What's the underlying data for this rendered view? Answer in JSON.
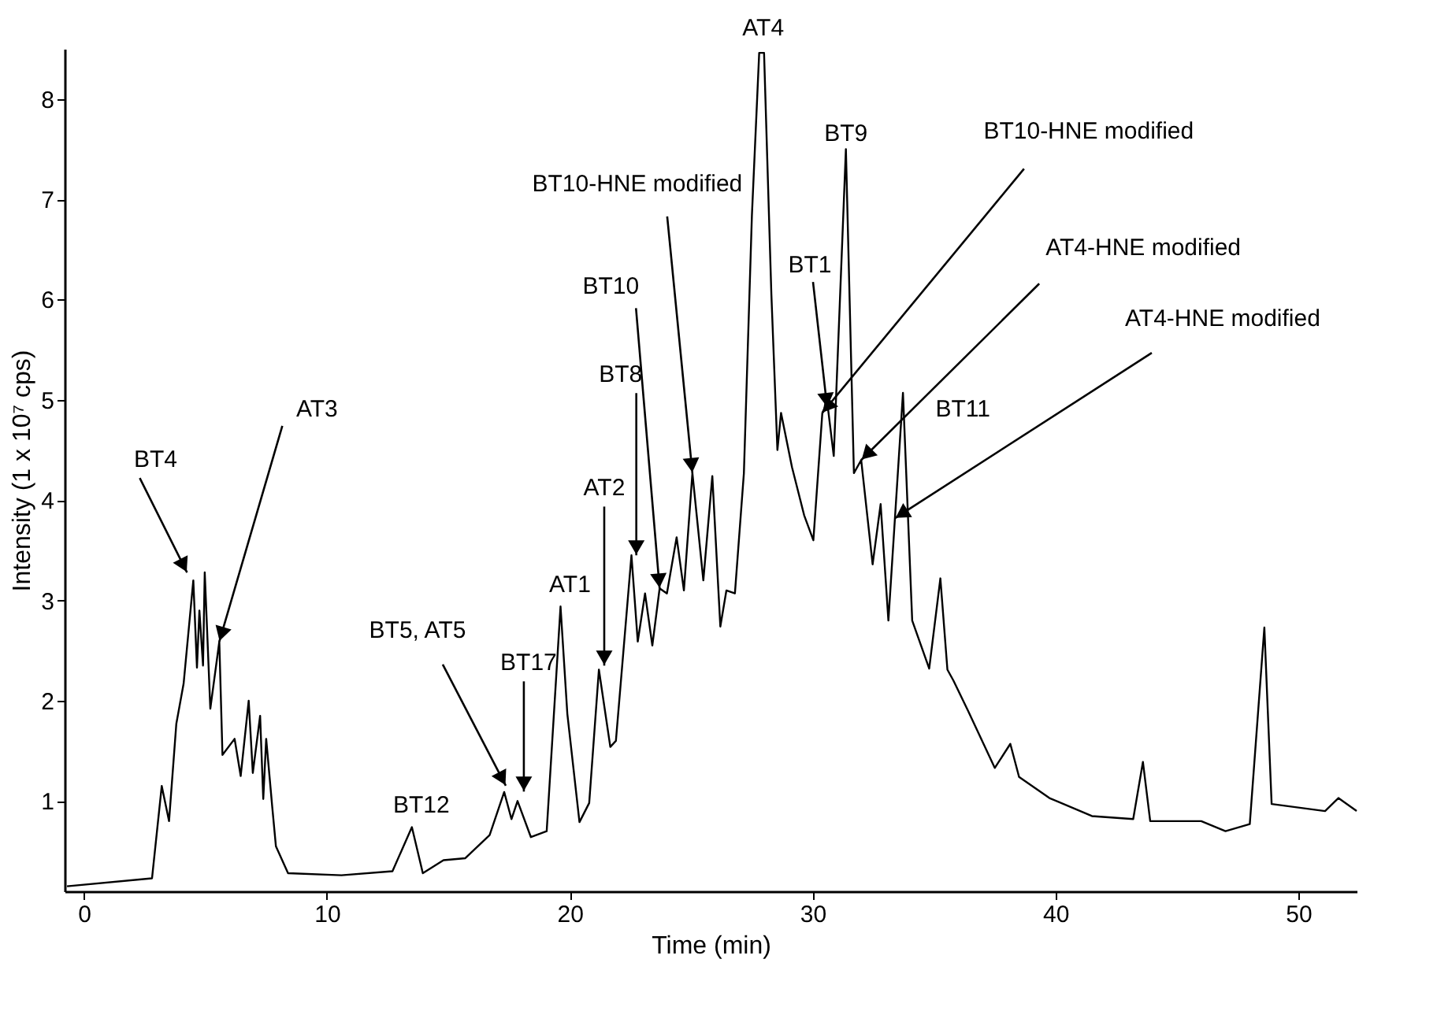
{
  "chart_data": {
    "type": "line",
    "xlabel": "Time (min)",
    "ylabel": "Intensity (1 x 10⁷ cps)",
    "xlim": [
      -0.8,
      52.4
    ],
    "ylim": [
      0.1,
      8.5
    ],
    "xticks": [
      0,
      10,
      20,
      30,
      40,
      50
    ],
    "yticks": [
      1,
      2,
      3,
      4,
      5,
      6,
      7,
      8
    ],
    "grid": false,
    "marker": "none",
    "line_style": "solid",
    "series": [
      {
        "color": "#000000",
        "x": [
          -0.7,
          2.8,
          3.2,
          3.5,
          3.8,
          4.1,
          4.5,
          4.65,
          4.75,
          4.9,
          4.97,
          5.2,
          5.57,
          5.7,
          6.2,
          6.45,
          6.78,
          6.95,
          7.25,
          7.38,
          7.5,
          7.75,
          7.9,
          8.4,
          10.6,
          12.7,
          13.5,
          13.95,
          14.8,
          15.7,
          16.7,
          17.3,
          17.6,
          17.85,
          18.4,
          19.05,
          19.62,
          19.9,
          20.4,
          20.8,
          21.2,
          21.67,
          21.9,
          22.54,
          22.8,
          23.1,
          23.4,
          23.7,
          24.0,
          24.4,
          24.7,
          25.05,
          25.5,
          25.87,
          26.2,
          26.45,
          26.8,
          27.17,
          27.5,
          27.8,
          28.0,
          28.3,
          28.55,
          28.7,
          29.15,
          29.65,
          30.03,
          30.4,
          30.6,
          30.87,
          31.37,
          31.7,
          32.0,
          32.47,
          32.8,
          33.12,
          33.72,
          34.1,
          34.8,
          35.26,
          35.55,
          35.8,
          36.4,
          37.5,
          38.14,
          38.5,
          39.75,
          41.5,
          43.2,
          43.6,
          43.9,
          46.0,
          47.0,
          48.0,
          48.6,
          48.9,
          51.1,
          51.65,
          52.4
        ],
        "values": [
          0.15,
          0.23,
          1.15,
          0.8,
          1.77,
          2.17,
          3.2,
          2.33,
          2.9,
          2.35,
          3.28,
          1.92,
          2.59,
          1.46,
          1.62,
          1.25,
          2.0,
          1.28,
          1.85,
          1.02,
          1.62,
          0.94,
          0.55,
          0.28,
          0.26,
          0.3,
          0.74,
          0.28,
          0.41,
          0.43,
          0.66,
          1.09,
          0.82,
          1.0,
          0.64,
          0.7,
          2.94,
          1.87,
          0.79,
          0.98,
          2.31,
          1.54,
          1.6,
          3.45,
          2.59,
          3.07,
          2.55,
          3.12,
          3.07,
          3.63,
          3.1,
          4.27,
          3.2,
          4.24,
          2.74,
          3.1,
          3.07,
          4.27,
          6.84,
          8.46,
          8.46,
          6.06,
          4.5,
          4.87,
          4.33,
          3.85,
          3.6,
          4.87,
          4.98,
          4.44,
          7.5,
          4.27,
          4.4,
          3.36,
          3.96,
          2.8,
          5.07,
          2.8,
          2.32,
          3.22,
          2.31,
          2.2,
          1.9,
          1.33,
          1.57,
          1.24,
          1.03,
          0.85,
          0.82,
          1.39,
          0.8,
          0.8,
          0.7,
          0.77,
          2.73,
          0.97,
          0.9,
          1.03,
          0.9
        ]
      }
    ],
    "annotations": [
      {
        "text": "BT4",
        "x": 4.5,
        "y": 3.2
      },
      {
        "text": "AT3",
        "x": 5.57,
        "y": 2.59
      },
      {
        "text": "BT12",
        "x": 13.5,
        "y": 0.74
      },
      {
        "text": "BT5, AT5",
        "x": 17.3,
        "y": 1.09
      },
      {
        "text": "BT17",
        "x": 17.85,
        "y": 1.0
      },
      {
        "text": "AT1",
        "x": 19.62,
        "y": 2.94
      },
      {
        "text": "AT2",
        "x": 21.42,
        "y": 2.35
      },
      {
        "text": "BT8",
        "x": 22.74,
        "y": 3.45
      },
      {
        "text": "BT10",
        "x": 23.7,
        "y": 3.12
      },
      {
        "text": "BT10-HNE modified",
        "x": 25.05,
        "y": 4.27
      },
      {
        "text": "AT4",
        "x": 27.9,
        "y": 8.46
      },
      {
        "text": "BT9",
        "x": 31.37,
        "y": 7.5
      },
      {
        "text": "BT1",
        "x": 30.6,
        "y": 4.92
      },
      {
        "text": "BT10-HNE modified",
        "x": 30.4,
        "y": 4.87
      },
      {
        "text": "AT4-HNE modified",
        "x": 32.0,
        "y": 4.4
      },
      {
        "text": "AT4-HNE modified",
        "x": 33.39,
        "y": 3.82
      },
      {
        "text": "BT11",
        "x": 33.72,
        "y": 5.07
      }
    ]
  }
}
